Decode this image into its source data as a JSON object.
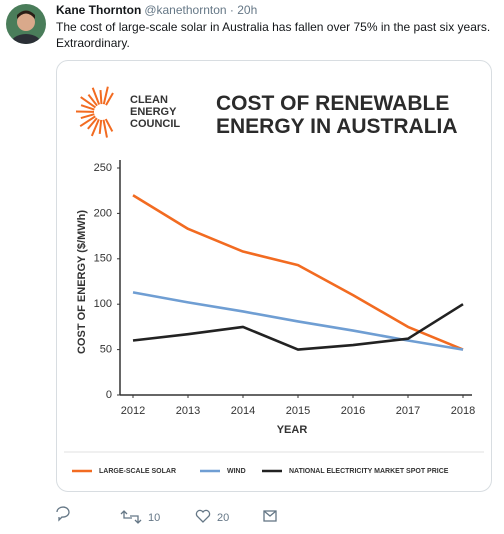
{
  "tweet": {
    "name": "Kane Thornton",
    "handle": "@kanethornton · 20h",
    "text": "The cost of large-scale solar in Australia has fallen over 75% in the past six years. Extraordinary.",
    "retweets": 10,
    "likes": 20
  },
  "logo": [
    "CLEAN",
    "ENERGY",
    "COUNCIL"
  ],
  "chart_data": {
    "type": "line",
    "title": "COST OF RENEWABLE ENERGY IN AUSTRALIA",
    "x_label": "YEAR",
    "y_label": "COST OF ENERGY ($/MWh)",
    "x": [
      2012,
      2013,
      2014,
      2015,
      2016,
      2017,
      2018
    ],
    "xlim": [
      2012,
      2018
    ],
    "xticks": [
      2012,
      2013,
      2014,
      2015,
      2016,
      2017,
      2018
    ],
    "ylim": [
      0,
      250
    ],
    "yticks": [
      0,
      50,
      100,
      150,
      200,
      250
    ],
    "legend": "bottom",
    "series": [
      {
        "name": "LARGE-SCALE SOLAR",
        "color": "#f26b21",
        "values": [
          220,
          183,
          158,
          143,
          110,
          75,
          50
        ]
      },
      {
        "name": "WIND",
        "color": "#6f9ed3",
        "values": [
          113,
          102,
          92,
          81,
          71,
          60,
          50
        ]
      },
      {
        "name": "NATIONAL ELECTRICITY MARKET SPOT PRICE",
        "color": "#222222",
        "values": [
          60,
          67,
          75,
          50,
          55,
          62,
          100
        ]
      }
    ]
  }
}
